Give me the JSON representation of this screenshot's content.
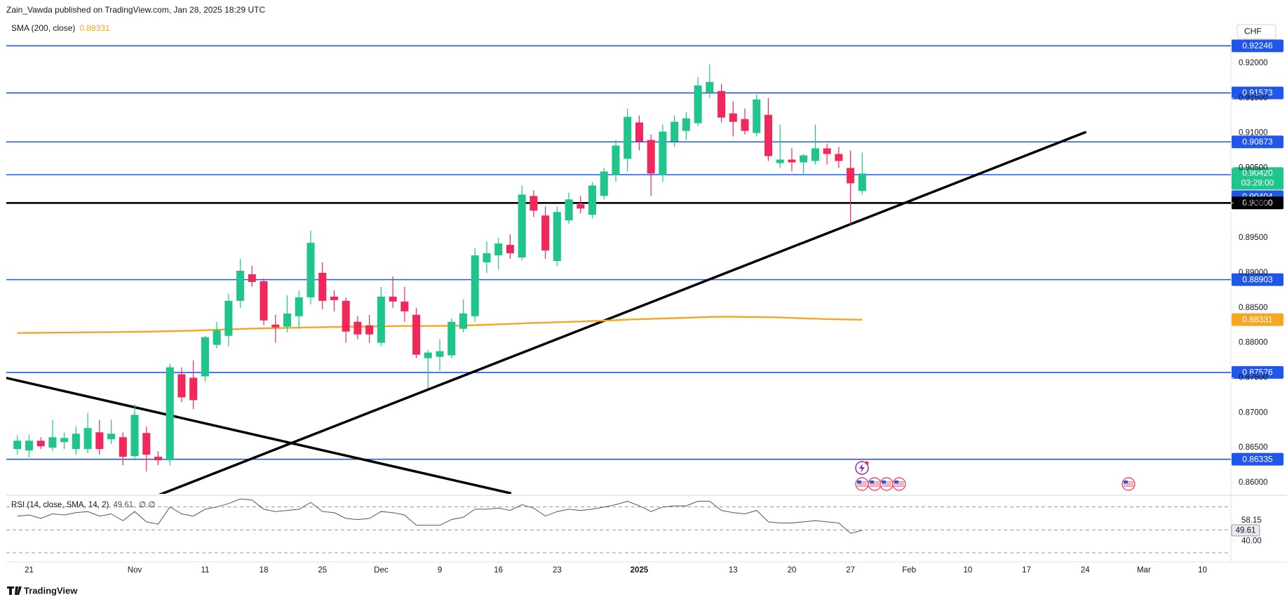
{
  "header": {
    "published": "Zain_Vawda published on TradingView.com, Jan 28, 2025 18:29 UTC"
  },
  "footer": {
    "brand": "TradingView"
  },
  "chart_data": {
    "type": "candlestick",
    "currency": "CHF",
    "x": [
      "2024-10-18",
      "2024-10-21",
      "2024-10-22",
      "2024-10-23",
      "2024-10-24",
      "2024-10-25",
      "2024-10-28",
      "2024-10-29",
      "2024-10-30",
      "2024-10-31",
      "2024-11-01",
      "2024-11-04",
      "2024-11-05",
      "2024-11-06",
      "2024-11-07",
      "2024-11-08",
      "2024-11-11",
      "2024-11-12",
      "2024-11-13",
      "2024-11-14",
      "2024-11-15",
      "2024-11-18",
      "2024-11-19",
      "2024-11-20",
      "2024-11-21",
      "2024-11-22",
      "2024-11-25",
      "2024-11-26",
      "2024-11-27",
      "2024-11-28",
      "2024-11-29",
      "2024-12-02",
      "2024-12-03",
      "2024-12-04",
      "2024-12-05",
      "2024-12-06",
      "2024-12-09",
      "2024-12-10",
      "2024-12-11",
      "2024-12-12",
      "2024-12-13",
      "2024-12-16",
      "2024-12-17",
      "2024-12-18",
      "2024-12-19",
      "2024-12-20",
      "2024-12-23",
      "2024-12-24",
      "2024-12-25",
      "2024-12-26",
      "2024-12-27",
      "2024-12-30",
      "2024-12-31",
      "2025-01-01",
      "2025-01-02",
      "2025-01-03",
      "2025-01-06",
      "2025-01-07",
      "2025-01-08",
      "2025-01-09",
      "2025-01-10",
      "2025-01-13",
      "2025-01-14",
      "2025-01-15",
      "2025-01-16",
      "2025-01-17",
      "2025-01-20",
      "2025-01-21",
      "2025-01-22",
      "2025-01-23",
      "2025-01-24",
      "2025-01-27",
      "2025-01-28"
    ],
    "open": [
      0.8648,
      0.8646,
      0.866,
      0.865,
      0.8658,
      0.8648,
      0.8648,
      0.8672,
      0.8662,
      0.8665,
      0.8638,
      0.8671,
      0.8637,
      0.8632,
      0.8755,
      0.875,
      0.8752,
      0.8797,
      0.881,
      0.886,
      0.8898,
      0.8888,
      0.8826,
      0.8823,
      0.8838,
      0.8865,
      0.89,
      0.8866,
      0.886,
      0.883,
      0.8825,
      0.88,
      0.8866,
      0.8859,
      0.884,
      0.8778,
      0.878,
      0.8782,
      0.882,
      0.8838,
      0.8915,
      0.8925,
      0.894,
      0.8922,
      0.901,
      0.8982,
      0.8917,
      0.8975,
      0.8998,
      0.8983,
      0.901,
      0.904,
      0.9063,
      0.9115,
      0.909,
      0.904,
      0.9088,
      0.9103,
      0.9114,
      0.9158,
      0.916,
      0.9128,
      0.912,
      0.91,
      0.9126,
      0.9057,
      0.9062,
      0.9058,
      0.906,
      0.9078,
      0.907,
      0.905,
      0.9017
    ],
    "high": [
      0.8668,
      0.8668,
      0.8665,
      0.869,
      0.8672,
      0.868,
      0.87,
      0.869,
      0.869,
      0.8672,
      0.8712,
      0.868,
      0.8645,
      0.877,
      0.8765,
      0.8775,
      0.881,
      0.883,
      0.887,
      0.892,
      0.891,
      0.8892,
      0.884,
      0.8868,
      0.8875,
      0.896,
      0.8915,
      0.8875,
      0.8865,
      0.8838,
      0.884,
      0.888,
      0.8895,
      0.888,
      0.885,
      0.879,
      0.8805,
      0.8835,
      0.8862,
      0.8935,
      0.8945,
      0.895,
      0.8955,
      0.9025,
      0.9018,
      0.8995,
      0.8995,
      0.9015,
      0.901,
      0.903,
      0.905,
      0.909,
      0.9135,
      0.9125,
      0.9098,
      0.9112,
      0.9125,
      0.913,
      0.918,
      0.9198,
      0.917,
      0.9145,
      0.9135,
      0.9155,
      0.915,
      0.9112,
      0.9078,
      0.907,
      0.9112,
      0.9085,
      0.908,
      0.9075,
      0.9072
    ],
    "low": [
      0.864,
      0.8636,
      0.8648,
      0.8645,
      0.8648,
      0.864,
      0.8642,
      0.864,
      0.8655,
      0.8625,
      0.8632,
      0.8616,
      0.8625,
      0.8625,
      0.8715,
      0.8705,
      0.8745,
      0.8792,
      0.8795,
      0.885,
      0.888,
      0.8825,
      0.88,
      0.8815,
      0.882,
      0.8855,
      0.8848,
      0.8845,
      0.88,
      0.8805,
      0.88,
      0.8795,
      0.885,
      0.883,
      0.8778,
      0.8735,
      0.876,
      0.8778,
      0.8815,
      0.883,
      0.89,
      0.8905,
      0.892,
      0.8918,
      0.898,
      0.892,
      0.891,
      0.897,
      0.8985,
      0.8978,
      0.9005,
      0.903,
      0.9045,
      0.9075,
      0.901,
      0.903,
      0.908,
      0.909,
      0.911,
      0.915,
      0.9115,
      0.9095,
      0.9098,
      0.9095,
      0.906,
      0.905,
      0.9045,
      0.904,
      0.9055,
      0.9055,
      0.905,
      0.8968,
      0.9012
    ],
    "close": [
      0.866,
      0.866,
      0.8652,
      0.8665,
      0.8664,
      0.867,
      0.8678,
      0.8648,
      0.867,
      0.8637,
      0.8697,
      0.864,
      0.8632,
      0.8765,
      0.8722,
      0.8718,
      0.8808,
      0.8818,
      0.886,
      0.8903,
      0.8887,
      0.8832,
      0.8822,
      0.8842,
      0.8865,
      0.8943,
      0.886,
      0.8861,
      0.8816,
      0.8812,
      0.8812,
      0.8866,
      0.8859,
      0.8845,
      0.8783,
      0.8786,
      0.8788,
      0.883,
      0.8842,
      0.8925,
      0.8928,
      0.8942,
      0.8928,
      0.9012,
      0.8989,
      0.8932,
      0.8987,
      0.9005,
      0.8992,
      0.9025,
      0.9045,
      0.9082,
      0.9123,
      0.9088,
      0.9042,
      0.9102,
      0.9116,
      0.9121,
      0.9168,
      0.9173,
      0.9122,
      0.9116,
      0.9103,
      0.9148,
      0.9067,
      0.9062,
      0.9058,
      0.9068,
      0.9078,
      0.907,
      0.906,
      0.9028,
      0.9042
    ],
    "up_color": "#20c58c",
    "down_color": "#f2285a",
    "xlim": [
      "2024-10-17",
      "2025-03-12"
    ],
    "xticks": [
      {
        "value": "2024-10-21",
        "label": "21"
      },
      {
        "value": "2024-11-01",
        "label": "Nov"
      },
      {
        "value": "2024-11-11",
        "label": "11"
      },
      {
        "value": "2024-11-18",
        "label": "18"
      },
      {
        "value": "2024-11-25",
        "label": "25"
      },
      {
        "value": "2024-12-02",
        "label": "Dec"
      },
      {
        "value": "2024-12-09",
        "label": "9"
      },
      {
        "value": "2024-12-16",
        "label": "16"
      },
      {
        "value": "2024-12-23",
        "label": "23"
      },
      {
        "value": "2025-01-01",
        "label": "2025"
      },
      {
        "value": "2025-01-13",
        "label": "13"
      },
      {
        "value": "2025-01-20",
        "label": "20"
      },
      {
        "value": "2025-01-27",
        "label": "27"
      },
      {
        "value": "2025-02-03",
        "label": "Feb"
      },
      {
        "value": "2025-02-10",
        "label": "10"
      },
      {
        "value": "2025-02-17",
        "label": "17"
      },
      {
        "value": "2025-02-24",
        "label": "24"
      },
      {
        "value": "2025-03-03",
        "label": "Mar"
      },
      {
        "value": "2025-03-10",
        "label": "10"
      }
    ],
    "ylim": [
      0.8585,
      0.9237
    ],
    "yticks": [
      {
        "value": 0.86,
        "label": "0.86000"
      },
      {
        "value": 0.865,
        "label": "0.86500"
      },
      {
        "value": 0.87,
        "label": "0.87000"
      },
      {
        "value": 0.875,
        "label": "0.87500"
      },
      {
        "value": 0.88,
        "label": "0.88000"
      },
      {
        "value": 0.885,
        "label": "0.88500"
      },
      {
        "value": 0.89,
        "label": "0.89000"
      },
      {
        "value": 0.895,
        "label": "0.89500"
      },
      {
        "value": 0.9,
        "label": "0.90000"
      },
      {
        "value": 0.905,
        "label": "0.90500"
      },
      {
        "value": 0.91,
        "label": "0.91000"
      },
      {
        "value": 0.915,
        "label": "0.91500"
      },
      {
        "value": 0.92,
        "label": "0.92000"
      }
    ],
    "grid": false,
    "last_price_label": "0.90420",
    "countdown": "03:29:00",
    "sma": {
      "name": "SMA (200, close)",
      "color": "#f5a623",
      "values": [
        0.8814,
        0.88142,
        0.88143,
        0.88145,
        0.88146,
        0.88148,
        0.8815,
        0.88151,
        0.88153,
        0.88155,
        0.88157,
        0.88159,
        0.88162,
        0.88166,
        0.8817,
        0.88174,
        0.8818,
        0.88186,
        0.88192,
        0.88198,
        0.88203,
        0.88207,
        0.8821,
        0.88213,
        0.88216,
        0.8822,
        0.88223,
        0.88226,
        0.88228,
        0.8823,
        0.88232,
        0.88236,
        0.88238,
        0.8824,
        0.8824,
        0.8824,
        0.88241,
        0.88243,
        0.88246,
        0.88252,
        0.88258,
        0.88264,
        0.8827,
        0.88278,
        0.88284,
        0.88288,
        0.88294,
        0.883,
        0.88305,
        0.88311,
        0.88317,
        0.88324,
        0.88332,
        0.88338,
        0.88342,
        0.88348,
        0.88353,
        0.88358,
        0.88364,
        0.8837,
        0.88373,
        0.88372,
        0.8837,
        0.88369,
        0.88366,
        0.88362,
        0.88356,
        0.8835,
        0.88345,
        0.8834,
        0.88336,
        0.88333,
        0.88331
      ]
    },
    "levels": [
      {
        "value": 0.92246,
        "color": "#2157e8"
      },
      {
        "value": 0.91573,
        "color": "#2157e8"
      },
      {
        "value": 0.90873,
        "color": "#2157e8"
      },
      {
        "value": 0.90404,
        "color": "#2157e8"
      },
      {
        "value": 0.9,
        "label": "0.90000",
        "color": "#000000"
      },
      {
        "value": 0.88903,
        "color": "#2157e8"
      },
      {
        "value": 0.87576,
        "color": "#2157e8"
      },
      {
        "value": 0.86335,
        "color": "#2157e8"
      }
    ],
    "trendlines": [
      {
        "color": "#000000",
        "points": [
          {
            "x": "2024-10-17",
            "y": 0.875
          },
          {
            "x": "2024-12-17",
            "y": 0.8585
          }
        ]
      },
      {
        "color": "#000000",
        "points": [
          {
            "x": "2024-11-05",
            "y": 0.8582
          },
          {
            "x": "2025-02-24",
            "y": 0.9101
          }
        ]
      }
    ],
    "rsi": {
      "name": "RSI (14, close, SMA, 14, 2)",
      "status": "∅ ∅",
      "color": "#555555",
      "ylim": [
        22,
        79
      ],
      "levels": [
        70,
        50,
        30
      ],
      "yticks": [
        58.15,
        {
          "value": 40,
          "label": "40.00"
        }
      ],
      "values": [
        62,
        63,
        60,
        64,
        63,
        65,
        66,
        62,
        64,
        58,
        66,
        57,
        55,
        70,
        64,
        62,
        68,
        70,
        73,
        77,
        76,
        68,
        66,
        67,
        68,
        74,
        66,
        65,
        60,
        59,
        60,
        66,
        65,
        63,
        54,
        54,
        54,
        59,
        61,
        68,
        68,
        69,
        67,
        72,
        69,
        62,
        66,
        68,
        67,
        68,
        70,
        72,
        75,
        71,
        66,
        70,
        71,
        71,
        75,
        75,
        67,
        65,
        64,
        67,
        57,
        56,
        56,
        57,
        58,
        57,
        56,
        47,
        49.61
      ]
    }
  }
}
